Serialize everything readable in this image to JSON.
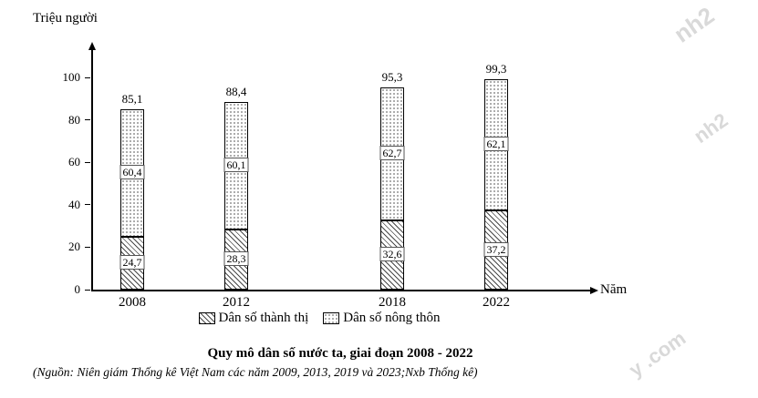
{
  "watermarks": [
    "nh2",
    "nh2",
    "y .com"
  ],
  "chart_data": {
    "type": "bar",
    "stacked": true,
    "title": "Quy mô dân số nước ta, giai đoạn 2008 - 2022",
    "source": "(Nguồn: Niên giám Thống kê Việt Nam các năm 2009, 2013, 2019 và 2023;Nxb Thống kê)",
    "ylabel": "Triệu người",
    "xlabel": "Năm",
    "categories": [
      "2008",
      "2012",
      "2018",
      "2022"
    ],
    "series": [
      {
        "name": "Dân số thành thị",
        "pattern": "diagonal-hatch",
        "values": [
          24.7,
          28.3,
          32.6,
          37.2
        ],
        "value_labels": [
          "24,7",
          "28,3",
          "32,6",
          "37,2"
        ]
      },
      {
        "name": "Dân số nông thôn",
        "pattern": "dots",
        "values": [
          60.4,
          60.1,
          62.7,
          62.1
        ],
        "value_labels": [
          "60,4",
          "60,1",
          "62,7",
          "62,1"
        ]
      }
    ],
    "totals": [
      85.1,
      88.4,
      95.3,
      99.3
    ],
    "total_labels": [
      "85,1",
      "88,4",
      "95,3",
      "99,3"
    ],
    "yticks": [
      0,
      20,
      40,
      60,
      80,
      100
    ],
    "ylim": [
      0,
      110
    ],
    "grid": false,
    "legend_position": "bottom"
  }
}
